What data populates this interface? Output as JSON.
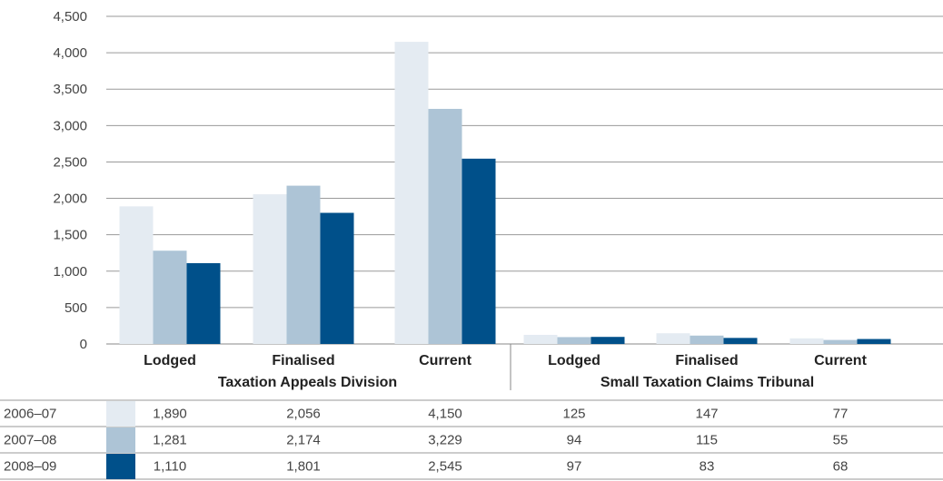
{
  "chart_data": {
    "type": "bar",
    "ylim": [
      0,
      4500
    ],
    "yticks": [
      "0",
      "500",
      "1,000",
      "1,500",
      "2,000",
      "2,500",
      "3,000",
      "3,500",
      "4,000",
      "4,500"
    ],
    "grid": true,
    "categories": [
      "Lodged",
      "Finalised",
      "Current",
      "Lodged",
      "Finalised",
      "Current"
    ],
    "groups": [
      {
        "label": "Taxation Appeals Division",
        "categories": [
          0,
          1,
          2
        ]
      },
      {
        "label": "Small Taxation Claims Tribunal",
        "categories": [
          3,
          4,
          5
        ]
      }
    ],
    "series": [
      {
        "name": "2006–07",
        "color": "#e4ebf2",
        "values": [
          1890,
          2056,
          4150,
          125,
          147,
          77
        ],
        "labels": [
          "1,890",
          "2,056",
          "4,150",
          "125",
          "147",
          "77"
        ]
      },
      {
        "name": "2007–08",
        "color": "#adc4d6",
        "values": [
          1281,
          2174,
          3229,
          94,
          115,
          55
        ],
        "labels": [
          "1,281",
          "2,174",
          "3,229",
          "94",
          "115",
          "55"
        ]
      },
      {
        "name": "2008–09",
        "color": "#00508a",
        "values": [
          1110,
          1801,
          2545,
          97,
          83,
          68
        ],
        "labels": [
          "1,110",
          "1,801",
          "2,545",
          "97",
          "83",
          "68"
        ]
      }
    ]
  }
}
